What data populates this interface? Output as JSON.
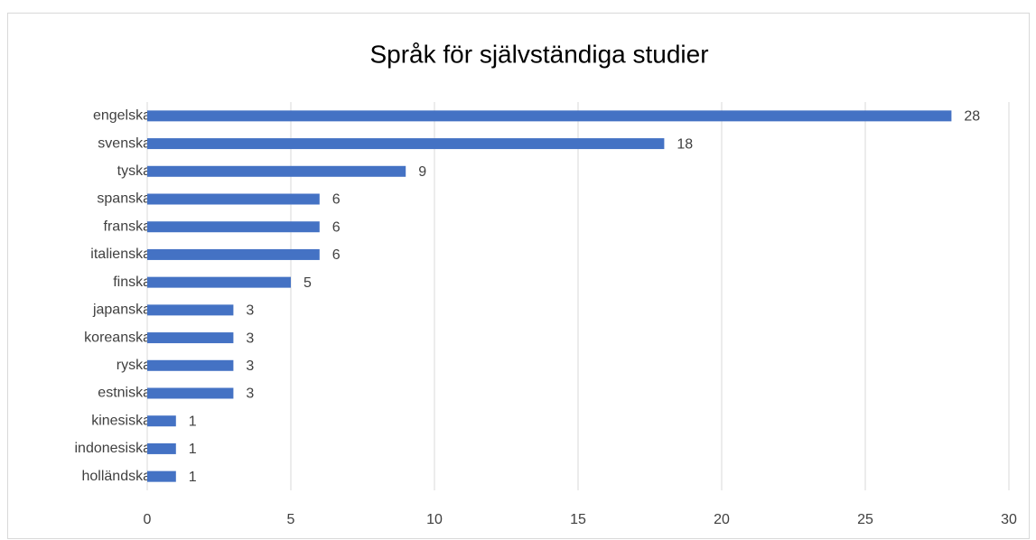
{
  "chart_data": {
    "type": "barh",
    "title": "Språk för självständiga studier",
    "categories": [
      "engelska",
      "svenska",
      "tyska",
      "spanska",
      "franska",
      "italienska",
      "finska",
      "japanska",
      "koreanska",
      "ryska",
      "estniska",
      "kinesiska",
      "indonesiska",
      "holländska"
    ],
    "values": [
      28,
      18,
      9,
      6,
      6,
      6,
      5,
      3,
      3,
      3,
      3,
      1,
      1,
      1
    ],
    "color": "#4472c4",
    "xlim": [
      0,
      30
    ],
    "xticks": [
      0,
      5,
      10,
      15,
      20,
      25,
      30
    ],
    "grid": true
  }
}
